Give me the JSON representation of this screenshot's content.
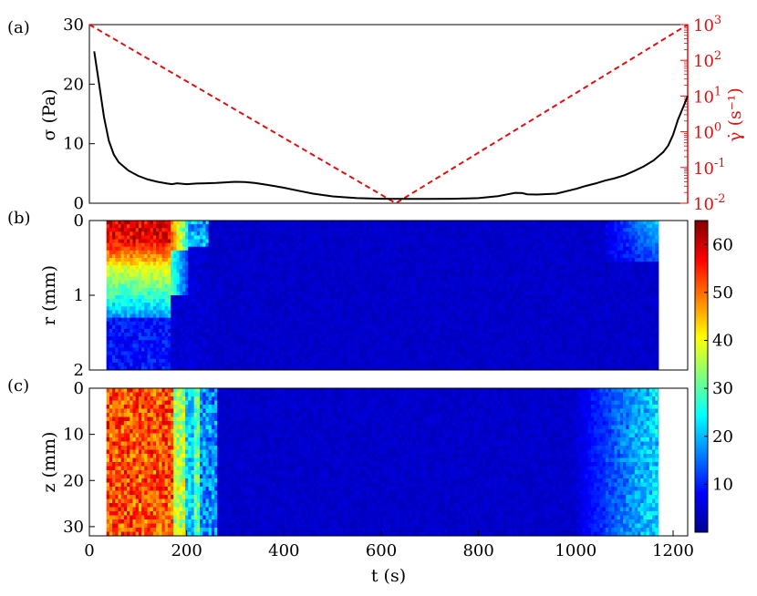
{
  "chart_data": [
    {
      "panel_label": "(a)",
      "type": "line",
      "ylabel": "σ (Pa)",
      "y2label": "γ̇ (s⁻¹)",
      "xlim": [
        0,
        1230
      ],
      "ylim": [
        0,
        30
      ],
      "y2lim": [
        0.01,
        1000
      ],
      "y2scale": "log",
      "yticks": [
        "0",
        "10",
        "20",
        "30"
      ],
      "y2ticks": [
        {
          "base": "10",
          "exp": "-2"
        },
        {
          "base": "10",
          "exp": "-1"
        },
        {
          "base": "10",
          "exp": "0"
        },
        {
          "base": "10",
          "exp": "1"
        },
        {
          "base": "10",
          "exp": "2"
        },
        {
          "base": "10",
          "exp": "3"
        }
      ],
      "colors": {
        "stress": "#000000",
        "rate": "#e01010"
      },
      "stress_series": {
        "x": [
          10,
          20,
          30,
          40,
          50,
          60,
          70,
          80,
          100,
          120,
          140,
          160,
          170,
          180,
          200,
          220,
          240,
          260,
          280,
          300,
          320,
          340,
          360,
          380,
          400,
          430,
          460,
          500,
          550,
          600,
          650,
          700,
          750,
          800,
          840,
          860,
          875,
          890,
          900,
          920,
          960,
          1000,
          1020,
          1040,
          1060,
          1080,
          1100,
          1120,
          1140,
          1160,
          1180,
          1190,
          1200,
          1210,
          1220,
          1230
        ],
        "y": [
          25.5,
          20,
          14.5,
          10.5,
          8.2,
          6.9,
          6.2,
          5.5,
          4.6,
          4.0,
          3.6,
          3.3,
          3.2,
          3.35,
          3.2,
          3.3,
          3.35,
          3.4,
          3.5,
          3.6,
          3.55,
          3.4,
          3.15,
          2.9,
          2.6,
          2.1,
          1.6,
          1.15,
          0.85,
          0.75,
          0.72,
          0.72,
          0.75,
          0.85,
          1.2,
          1.5,
          1.75,
          1.7,
          1.5,
          1.45,
          1.6,
          2.4,
          2.9,
          3.3,
          3.8,
          4.2,
          4.7,
          5.4,
          6.2,
          7.2,
          8.6,
          9.7,
          11.5,
          14.0,
          16.0,
          18.0
        ]
      },
      "rate_series": {
        "x": [
          0,
          630,
          1230
        ],
        "y": [
          1000,
          0.01,
          1000
        ]
      }
    },
    {
      "panel_label": "(b)",
      "type": "heatmap",
      "ylabel": "r (mm)",
      "xlim": [
        0,
        1230
      ],
      "ylim": [
        2,
        0
      ],
      "yticks": [
        "0",
        "1",
        "2"
      ],
      "data_x_range": [
        35,
        1170
      ],
      "colorbar": {
        "min": 0,
        "max": 65,
        "ticks": [
          "10",
          "20",
          "30",
          "40",
          "50",
          "60"
        ]
      }
    },
    {
      "panel_label": "(c)",
      "type": "heatmap",
      "ylabel": "z (mm)",
      "xlabel": "t (s)",
      "xlim": [
        0,
        1230
      ],
      "ylim": [
        32,
        0
      ],
      "yticks": [
        "0",
        "10",
        "20",
        "30"
      ],
      "xticks": [
        "0",
        "200",
        "400",
        "600",
        "800",
        "1000",
        "1200"
      ],
      "data_x_range": [
        35,
        1170
      ]
    }
  ]
}
